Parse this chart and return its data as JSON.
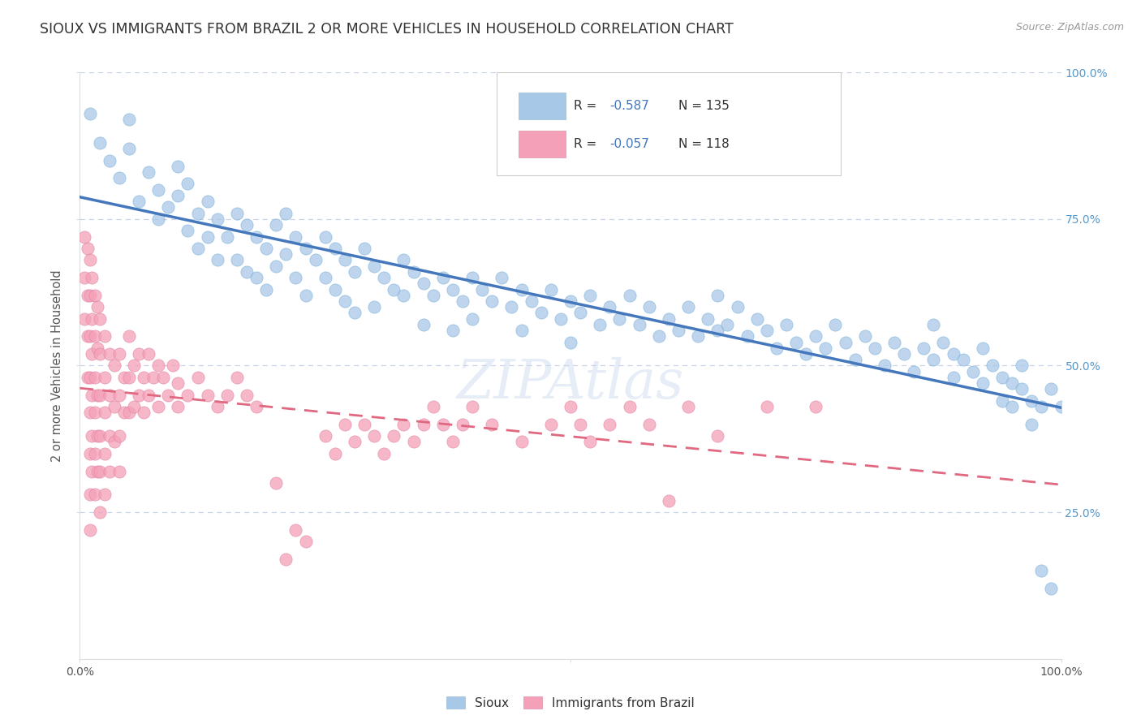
{
  "title": "SIOUX VS IMMIGRANTS FROM BRAZIL 2 OR MORE VEHICLES IN HOUSEHOLD CORRELATION CHART",
  "source_text": "Source: ZipAtlas.com",
  "ylabel": "2 or more Vehicles in Household",
  "xlabel": "",
  "xlim": [
    0.0,
    1.0
  ],
  "ylim": [
    0.0,
    1.0
  ],
  "sioux_color": "#a8c8e8",
  "brazil_color": "#f4a0b8",
  "sioux_line_color": "#4477bb",
  "brazil_line_color": "#e06880",
  "watermark": "ZIPAtlas",
  "background_color": "#ffffff",
  "grid_color": "#c8d4e8",
  "sioux_R": -0.587,
  "sioux_N": 135,
  "brazil_R": -0.057,
  "brazil_N": 118,
  "legend_r_color": "#4477bb",
  "legend_n_color": "#333333",
  "ytick_color": "#5599cc",
  "sioux_points": [
    [
      0.01,
      0.93
    ],
    [
      0.02,
      0.88
    ],
    [
      0.03,
      0.85
    ],
    [
      0.04,
      0.82
    ],
    [
      0.05,
      0.92
    ],
    [
      0.05,
      0.87
    ],
    [
      0.06,
      0.78
    ],
    [
      0.07,
      0.83
    ],
    [
      0.08,
      0.8
    ],
    [
      0.08,
      0.75
    ],
    [
      0.09,
      0.77
    ],
    [
      0.1,
      0.84
    ],
    [
      0.1,
      0.79
    ],
    [
      0.11,
      0.81
    ],
    [
      0.11,
      0.73
    ],
    [
      0.12,
      0.76
    ],
    [
      0.12,
      0.7
    ],
    [
      0.13,
      0.78
    ],
    [
      0.13,
      0.72
    ],
    [
      0.14,
      0.75
    ],
    [
      0.14,
      0.68
    ],
    [
      0.15,
      0.72
    ],
    [
      0.16,
      0.76
    ],
    [
      0.16,
      0.68
    ],
    [
      0.17,
      0.74
    ],
    [
      0.17,
      0.66
    ],
    [
      0.18,
      0.72
    ],
    [
      0.18,
      0.65
    ],
    [
      0.19,
      0.7
    ],
    [
      0.19,
      0.63
    ],
    [
      0.2,
      0.74
    ],
    [
      0.2,
      0.67
    ],
    [
      0.21,
      0.76
    ],
    [
      0.21,
      0.69
    ],
    [
      0.22,
      0.72
    ],
    [
      0.22,
      0.65
    ],
    [
      0.23,
      0.7
    ],
    [
      0.23,
      0.62
    ],
    [
      0.24,
      0.68
    ],
    [
      0.25,
      0.72
    ],
    [
      0.25,
      0.65
    ],
    [
      0.26,
      0.7
    ],
    [
      0.26,
      0.63
    ],
    [
      0.27,
      0.68
    ],
    [
      0.27,
      0.61
    ],
    [
      0.28,
      0.66
    ],
    [
      0.28,
      0.59
    ],
    [
      0.29,
      0.7
    ],
    [
      0.3,
      0.67
    ],
    [
      0.3,
      0.6
    ],
    [
      0.31,
      0.65
    ],
    [
      0.32,
      0.63
    ],
    [
      0.33,
      0.68
    ],
    [
      0.33,
      0.62
    ],
    [
      0.34,
      0.66
    ],
    [
      0.35,
      0.64
    ],
    [
      0.35,
      0.57
    ],
    [
      0.36,
      0.62
    ],
    [
      0.37,
      0.65
    ],
    [
      0.38,
      0.63
    ],
    [
      0.38,
      0.56
    ],
    [
      0.39,
      0.61
    ],
    [
      0.4,
      0.65
    ],
    [
      0.4,
      0.58
    ],
    [
      0.41,
      0.63
    ],
    [
      0.42,
      0.61
    ],
    [
      0.43,
      0.65
    ],
    [
      0.44,
      0.6
    ],
    [
      0.45,
      0.63
    ],
    [
      0.45,
      0.56
    ],
    [
      0.46,
      0.61
    ],
    [
      0.47,
      0.59
    ],
    [
      0.48,
      0.63
    ],
    [
      0.49,
      0.58
    ],
    [
      0.5,
      0.61
    ],
    [
      0.5,
      0.54
    ],
    [
      0.51,
      0.59
    ],
    [
      0.52,
      0.62
    ],
    [
      0.53,
      0.57
    ],
    [
      0.54,
      0.6
    ],
    [
      0.55,
      0.58
    ],
    [
      0.56,
      0.62
    ],
    [
      0.57,
      0.57
    ],
    [
      0.58,
      0.6
    ],
    [
      0.59,
      0.55
    ],
    [
      0.6,
      0.58
    ],
    [
      0.61,
      0.56
    ],
    [
      0.62,
      0.6
    ],
    [
      0.63,
      0.55
    ],
    [
      0.64,
      0.58
    ],
    [
      0.65,
      0.56
    ],
    [
      0.65,
      0.62
    ],
    [
      0.66,
      0.57
    ],
    [
      0.67,
      0.6
    ],
    [
      0.68,
      0.55
    ],
    [
      0.69,
      0.58
    ],
    [
      0.7,
      0.56
    ],
    [
      0.71,
      0.53
    ],
    [
      0.72,
      0.57
    ],
    [
      0.73,
      0.54
    ],
    [
      0.74,
      0.52
    ],
    [
      0.75,
      0.55
    ],
    [
      0.76,
      0.53
    ],
    [
      0.77,
      0.57
    ],
    [
      0.78,
      0.54
    ],
    [
      0.79,
      0.51
    ],
    [
      0.8,
      0.55
    ],
    [
      0.81,
      0.53
    ],
    [
      0.82,
      0.5
    ],
    [
      0.83,
      0.54
    ],
    [
      0.84,
      0.52
    ],
    [
      0.85,
      0.49
    ],
    [
      0.86,
      0.53
    ],
    [
      0.87,
      0.51
    ],
    [
      0.87,
      0.57
    ],
    [
      0.88,
      0.54
    ],
    [
      0.89,
      0.52
    ],
    [
      0.89,
      0.48
    ],
    [
      0.9,
      0.51
    ],
    [
      0.91,
      0.49
    ],
    [
      0.92,
      0.53
    ],
    [
      0.92,
      0.47
    ],
    [
      0.93,
      0.5
    ],
    [
      0.94,
      0.48
    ],
    [
      0.94,
      0.44
    ],
    [
      0.95,
      0.47
    ],
    [
      0.95,
      0.43
    ],
    [
      0.96,
      0.5
    ],
    [
      0.96,
      0.46
    ],
    [
      0.97,
      0.44
    ],
    [
      0.97,
      0.4
    ],
    [
      0.98,
      0.43
    ],
    [
      0.98,
      0.15
    ],
    [
      0.99,
      0.12
    ],
    [
      0.99,
      0.46
    ],
    [
      1.0,
      0.43
    ]
  ],
  "brazil_points": [
    [
      0.005,
      0.72
    ],
    [
      0.005,
      0.65
    ],
    [
      0.005,
      0.58
    ],
    [
      0.008,
      0.7
    ],
    [
      0.008,
      0.62
    ],
    [
      0.008,
      0.55
    ],
    [
      0.008,
      0.48
    ],
    [
      0.01,
      0.68
    ],
    [
      0.01,
      0.62
    ],
    [
      0.01,
      0.55
    ],
    [
      0.01,
      0.48
    ],
    [
      0.01,
      0.42
    ],
    [
      0.01,
      0.35
    ],
    [
      0.01,
      0.28
    ],
    [
      0.01,
      0.22
    ],
    [
      0.012,
      0.65
    ],
    [
      0.012,
      0.58
    ],
    [
      0.012,
      0.52
    ],
    [
      0.012,
      0.45
    ],
    [
      0.012,
      0.38
    ],
    [
      0.012,
      0.32
    ],
    [
      0.015,
      0.62
    ],
    [
      0.015,
      0.55
    ],
    [
      0.015,
      0.48
    ],
    [
      0.015,
      0.42
    ],
    [
      0.015,
      0.35
    ],
    [
      0.015,
      0.28
    ],
    [
      0.018,
      0.6
    ],
    [
      0.018,
      0.53
    ],
    [
      0.018,
      0.45
    ],
    [
      0.018,
      0.38
    ],
    [
      0.018,
      0.32
    ],
    [
      0.02,
      0.58
    ],
    [
      0.02,
      0.52
    ],
    [
      0.02,
      0.45
    ],
    [
      0.02,
      0.38
    ],
    [
      0.02,
      0.32
    ],
    [
      0.02,
      0.25
    ],
    [
      0.025,
      0.55
    ],
    [
      0.025,
      0.48
    ],
    [
      0.025,
      0.42
    ],
    [
      0.025,
      0.35
    ],
    [
      0.025,
      0.28
    ],
    [
      0.03,
      0.52
    ],
    [
      0.03,
      0.45
    ],
    [
      0.03,
      0.38
    ],
    [
      0.03,
      0.32
    ],
    [
      0.035,
      0.5
    ],
    [
      0.035,
      0.43
    ],
    [
      0.035,
      0.37
    ],
    [
      0.04,
      0.52
    ],
    [
      0.04,
      0.45
    ],
    [
      0.04,
      0.38
    ],
    [
      0.04,
      0.32
    ],
    [
      0.045,
      0.48
    ],
    [
      0.045,
      0.42
    ],
    [
      0.05,
      0.55
    ],
    [
      0.05,
      0.48
    ],
    [
      0.05,
      0.42
    ],
    [
      0.055,
      0.5
    ],
    [
      0.055,
      0.43
    ],
    [
      0.06,
      0.52
    ],
    [
      0.06,
      0.45
    ],
    [
      0.065,
      0.48
    ],
    [
      0.065,
      0.42
    ],
    [
      0.07,
      0.52
    ],
    [
      0.07,
      0.45
    ],
    [
      0.075,
      0.48
    ],
    [
      0.08,
      0.5
    ],
    [
      0.08,
      0.43
    ],
    [
      0.085,
      0.48
    ],
    [
      0.09,
      0.45
    ],
    [
      0.095,
      0.5
    ],
    [
      0.1,
      0.47
    ],
    [
      0.1,
      0.43
    ],
    [
      0.11,
      0.45
    ],
    [
      0.12,
      0.48
    ],
    [
      0.13,
      0.45
    ],
    [
      0.14,
      0.43
    ],
    [
      0.15,
      0.45
    ],
    [
      0.16,
      0.48
    ],
    [
      0.17,
      0.45
    ],
    [
      0.18,
      0.43
    ],
    [
      0.2,
      0.3
    ],
    [
      0.21,
      0.17
    ],
    [
      0.22,
      0.22
    ],
    [
      0.23,
      0.2
    ],
    [
      0.25,
      0.38
    ],
    [
      0.26,
      0.35
    ],
    [
      0.27,
      0.4
    ],
    [
      0.28,
      0.37
    ],
    [
      0.29,
      0.4
    ],
    [
      0.3,
      0.38
    ],
    [
      0.31,
      0.35
    ],
    [
      0.32,
      0.38
    ],
    [
      0.33,
      0.4
    ],
    [
      0.34,
      0.37
    ],
    [
      0.35,
      0.4
    ],
    [
      0.36,
      0.43
    ],
    [
      0.37,
      0.4
    ],
    [
      0.38,
      0.37
    ],
    [
      0.39,
      0.4
    ],
    [
      0.4,
      0.43
    ],
    [
      0.42,
      0.4
    ],
    [
      0.45,
      0.37
    ],
    [
      0.48,
      0.4
    ],
    [
      0.5,
      0.43
    ],
    [
      0.51,
      0.4
    ],
    [
      0.52,
      0.37
    ],
    [
      0.54,
      0.4
    ],
    [
      0.56,
      0.43
    ],
    [
      0.58,
      0.4
    ],
    [
      0.6,
      0.27
    ],
    [
      0.62,
      0.43
    ],
    [
      0.65,
      0.38
    ],
    [
      0.7,
      0.43
    ],
    [
      0.75,
      0.43
    ]
  ]
}
